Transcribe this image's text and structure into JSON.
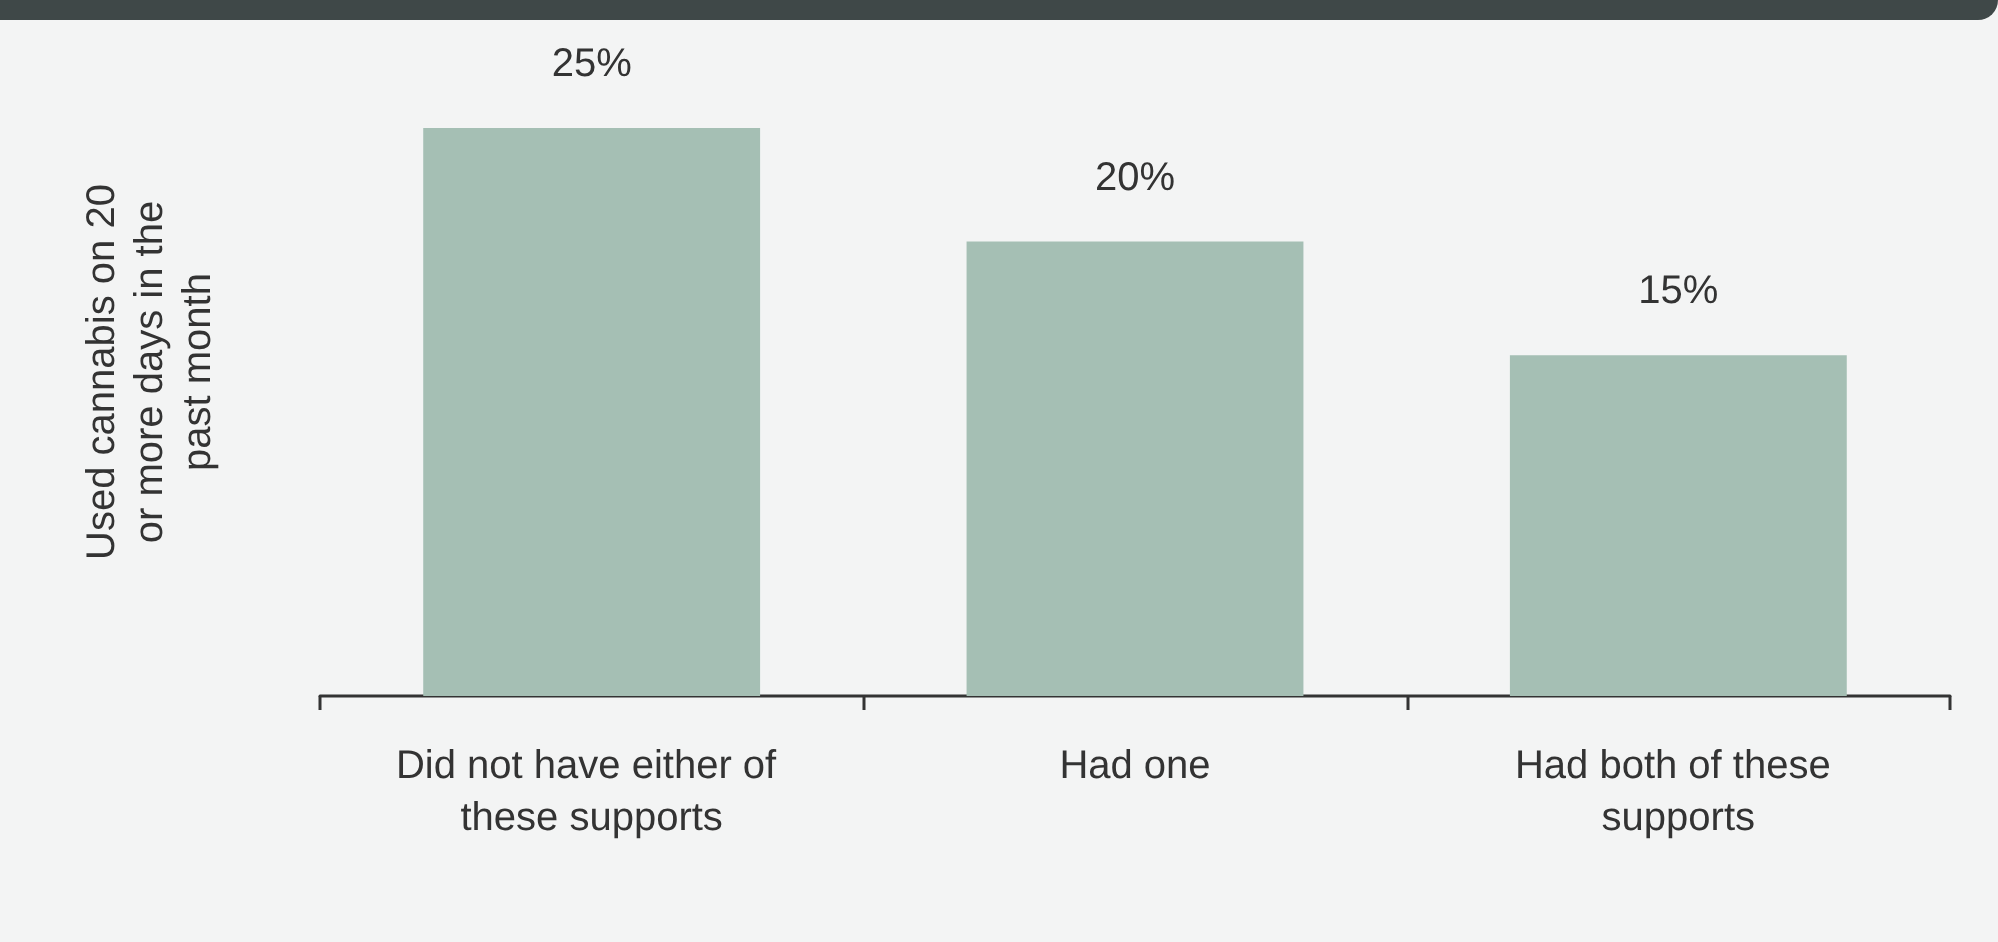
{
  "chart_data": {
    "type": "bar",
    "ylabel": "Used cannabis on 20 or more days in the past month",
    "categories": [
      "Did not have either of these supports",
      "Had one",
      "Had both of these supports"
    ],
    "values": [
      25,
      20,
      15
    ],
    "value_labels": [
      "25%",
      "20%",
      "15%"
    ],
    "color": "#a5bfb4",
    "grid": false,
    "tick_labels": "x"
  }
}
